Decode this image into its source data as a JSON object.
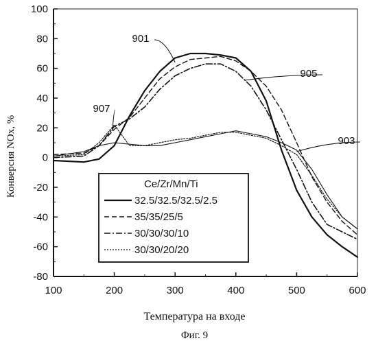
{
  "chart_data": {
    "type": "line",
    "xlabel": "Температура на входе",
    "ylabel": "Конверсия NOx, %",
    "xlim": [
      100,
      600
    ],
    "ylim": [
      -80,
      100
    ],
    "xticks": [
      100,
      200,
      300,
      400,
      500,
      600
    ],
    "yticks": [
      -80,
      -60,
      -40,
      -20,
      0,
      20,
      40,
      60,
      80,
      100
    ],
    "legend_title": "Ce/Zr/Mn/Ti",
    "legend_location": "lower-left",
    "series": [
      {
        "name": "32.5/32.5/32.5/2.5",
        "style": "solid",
        "curve_label": "901",
        "x": [
          100,
          150,
          175,
          200,
          225,
          250,
          275,
          300,
          325,
          350,
          375,
          400,
          425,
          450,
          475,
          500,
          525,
          550,
          575,
          600
        ],
        "y": [
          -2,
          -3,
          -1,
          8,
          28,
          45,
          58,
          67,
          70,
          70,
          69,
          67,
          58,
          38,
          5,
          -22,
          -40,
          -52,
          -60,
          -67
        ]
      },
      {
        "name": "35/35/25/5",
        "style": "dashed",
        "curve_label": "",
        "x": [
          100,
          150,
          175,
          200,
          225,
          250,
          275,
          300,
          325,
          350,
          375,
          400,
          425,
          450,
          475,
          500,
          525,
          550,
          575,
          600
        ],
        "y": [
          2,
          3,
          8,
          19,
          27,
          40,
          53,
          61,
          66,
          67,
          68,
          65,
          58,
          48,
          32,
          10,
          -13,
          -30,
          -43,
          -52
        ]
      },
      {
        "name": "30/30/30/10",
        "style": "dash-dot",
        "curve_label": "905",
        "x": [
          100,
          150,
          175,
          200,
          225,
          250,
          275,
          300,
          325,
          350,
          375,
          400,
          425,
          450,
          475,
          500,
          525,
          550,
          575,
          600
        ],
        "y": [
          0,
          1,
          8,
          21,
          26,
          34,
          46,
          55,
          60,
          63,
          63,
          58,
          48,
          32,
          12,
          -8,
          -30,
          -45,
          -50,
          -55
        ]
      },
      {
        "name": "30/30/20/20",
        "style": "dotted",
        "curve_label": "907",
        "x": [
          100,
          150,
          175,
          200,
          225,
          250,
          275,
          300,
          325,
          350,
          375,
          400,
          425,
          450,
          475,
          500,
          525,
          550,
          575,
          600
        ],
        "y": [
          1,
          2,
          10,
          22,
          8,
          8,
          10,
          12,
          13,
          15,
          17,
          17,
          15,
          13,
          8,
          2,
          -12,
          -28,
          -40,
          -48
        ]
      },
      {
        "name": "",
        "style": "thin-solid",
        "curve_label": "903",
        "x": [
          100,
          150,
          175,
          200,
          225,
          250,
          275,
          300,
          325,
          350,
          375,
          400,
          425,
          450,
          475,
          500,
          525,
          550,
          575,
          600
        ],
        "y": [
          1,
          4,
          8,
          10,
          9,
          8,
          8,
          10,
          12,
          14,
          16,
          18,
          16,
          14,
          10,
          5,
          -8,
          -25,
          -40,
          -48
        ]
      }
    ],
    "curve_labels": [
      "901",
      "903",
      "905",
      "907"
    ]
  },
  "figure_caption": "Фиг. 9"
}
